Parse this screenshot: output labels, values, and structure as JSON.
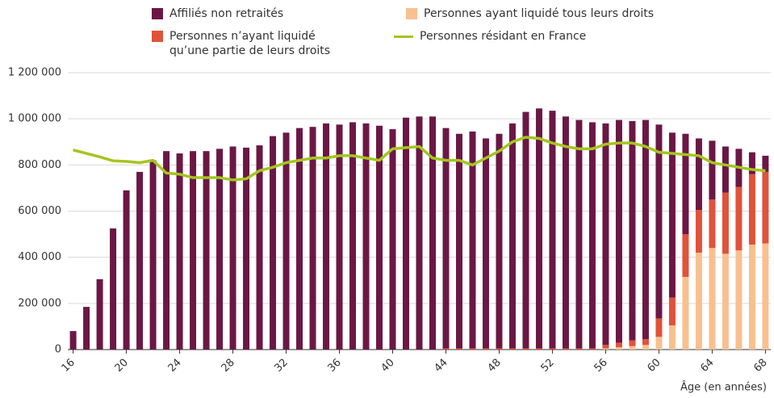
{
  "chart_data": {
    "type": "bar",
    "x_label": "Âge (en années)",
    "x": [
      16,
      17,
      18,
      19,
      20,
      21,
      22,
      23,
      24,
      25,
      26,
      27,
      28,
      29,
      30,
      31,
      32,
      33,
      34,
      35,
      36,
      37,
      38,
      39,
      40,
      41,
      42,
      43,
      44,
      45,
      46,
      47,
      48,
      49,
      50,
      51,
      52,
      53,
      54,
      55,
      56,
      57,
      58,
      59,
      60,
      61,
      62,
      63,
      64,
      65,
      66,
      67,
      68
    ],
    "xlim": [
      15.6,
      68.4
    ],
    "xticks": [
      16,
      20,
      24,
      28,
      32,
      36,
      40,
      44,
      48,
      52,
      56,
      60,
      64,
      68
    ],
    "ylim": [
      0,
      1200000
    ],
    "yticks": [
      0,
      {
        "value": 200000,
        "label": "200 000"
      },
      {
        "value": 400000,
        "label": "400 000"
      },
      {
        "value": 600000,
        "label": "600 000"
      },
      {
        "value": 800000,
        "label": "800 000"
      },
      {
        "value": 1000000,
        "label": "1 000 000"
      },
      {
        "value": 1200000,
        "label": "1 200 000"
      }
    ],
    "grid": true,
    "series": [
      {
        "name": "Affiliés non retraités",
        "color": "#6b1745",
        "type": "bar",
        "values": [
          80000,
          185000,
          305000,
          525000,
          690000,
          770000,
          820000,
          860000,
          850000,
          860000,
          860000,
          870000,
          880000,
          875000,
          885000,
          925000,
          940000,
          960000,
          965000,
          980000,
          975000,
          985000,
          980000,
          970000,
          955000,
          1005000,
          1010000,
          1010000,
          955000,
          930000,
          940000,
          910000,
          930000,
          975000,
          1025000,
          1040000,
          1030000,
          1005000,
          990000,
          980000,
          960000,
          965000,
          950000,
          950000,
          840000,
          715000,
          435000,
          310000,
          255000,
          200000,
          165000,
          95000,
          70000
        ]
      },
      {
        "name": "Personnes n’ayant liquidé qu’une partie de leurs droits",
        "color": "#e0523a",
        "type": "bar",
        "values": [
          0,
          0,
          0,
          0,
          0,
          0,
          0,
          0,
          0,
          0,
          0,
          0,
          0,
          0,
          0,
          0,
          0,
          0,
          0,
          0,
          0,
          0,
          0,
          0,
          0,
          0,
          0,
          0,
          5000,
          5000,
          5000,
          5000,
          5000,
          5000,
          5000,
          5000,
          5000,
          5000,
          5000,
          5000,
          15000,
          20000,
          25000,
          25000,
          80000,
          120000,
          185000,
          185000,
          210000,
          265000,
          275000,
          305000,
          310000
        ]
      },
      {
        "name": "Personnes ayant liquidé tous leurs droits",
        "color": "#f8c08f",
        "type": "bar",
        "values": [
          0,
          0,
          0,
          0,
          0,
          0,
          0,
          0,
          0,
          0,
          0,
          0,
          0,
          0,
          0,
          0,
          0,
          0,
          0,
          0,
          0,
          0,
          0,
          0,
          0,
          0,
          0,
          0,
          0,
          0,
          0,
          0,
          0,
          0,
          0,
          0,
          0,
          0,
          0,
          0,
          5000,
          10000,
          15000,
          20000,
          55000,
          105000,
          315000,
          420000,
          440000,
          415000,
          430000,
          455000,
          460000
        ]
      },
      {
        "name": "Personnes résidant en France",
        "color": "#a4c520",
        "type": "line",
        "values": [
          865000,
          850000,
          835000,
          818000,
          815000,
          810000,
          820000,
          765000,
          760000,
          745000,
          745000,
          745000,
          735000,
          740000,
          775000,
          790000,
          810000,
          820000,
          830000,
          830000,
          840000,
          840000,
          830000,
          820000,
          870000,
          875000,
          880000,
          830000,
          820000,
          820000,
          800000,
          830000,
          860000,
          900000,
          920000,
          915000,
          895000,
          880000,
          870000,
          870000,
          890000,
          895000,
          895000,
          880000,
          855000,
          850000,
          845000,
          840000,
          810000,
          800000,
          790000,
          780000,
          775000
        ]
      }
    ]
  }
}
